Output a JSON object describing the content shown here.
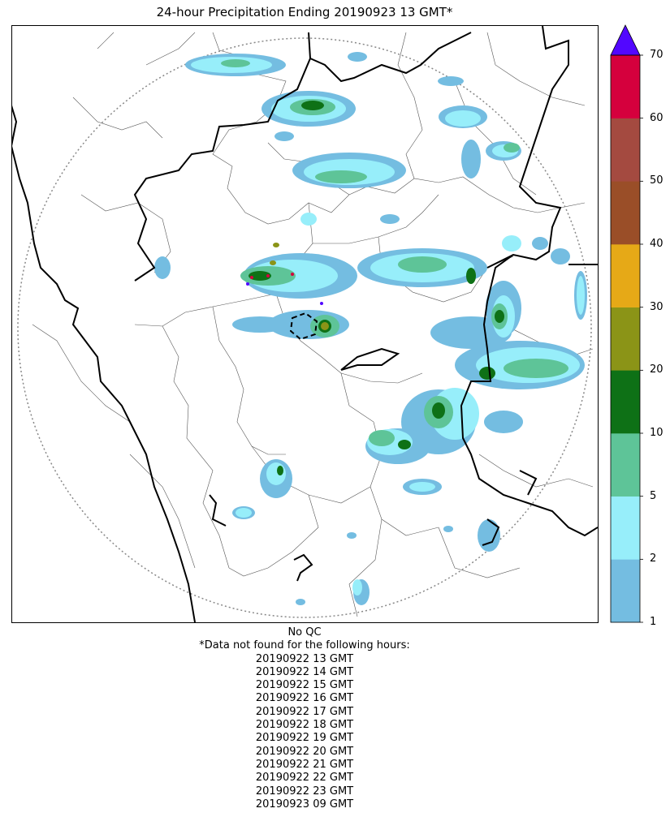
{
  "chart_data": {
    "type": "heatmap",
    "title": "24-hour Precipitation Ending 20190923 13 GMT*",
    "colorbar": {
      "ticks": [
        1,
        2,
        5,
        10,
        20,
        30,
        40,
        50,
        60,
        70
      ],
      "bins": [
        {
          "from": 1,
          "to": 2,
          "color": "#74bde1"
        },
        {
          "from": 2,
          "to": 5,
          "color": "#97eefa"
        },
        {
          "from": 5,
          "to": 10,
          "color": "#5ec498"
        },
        {
          "from": 10,
          "to": 20,
          "color": "#0e7116"
        },
        {
          "from": 20,
          "to": 30,
          "color": "#8b9417"
        },
        {
          "from": 30,
          "to": 40,
          "color": "#e6a917"
        },
        {
          "from": 40,
          "to": 50,
          "color": "#9a4e28"
        },
        {
          "from": 50,
          "to": 60,
          "color": "#a44a40"
        },
        {
          "from": 60,
          "to": 70,
          "color": "#d5003d"
        }
      ],
      "extend_max_color": "#5207ff"
    },
    "grid": false
  },
  "notes": {
    "qc": "No QC",
    "missing_header": "*Data not found for the following hours:",
    "missing_hours": [
      "20190922 13 GMT",
      "20190922 14 GMT",
      "20190922 15 GMT",
      "20190922 16 GMT",
      "20190922 17 GMT",
      "20190922 18 GMT",
      "20190922 19 GMT",
      "20190922 20 GMT",
      "20190922 21 GMT",
      "20190922 22 GMT",
      "20190922 23 GMT",
      "20190923 09 GMT"
    ]
  }
}
